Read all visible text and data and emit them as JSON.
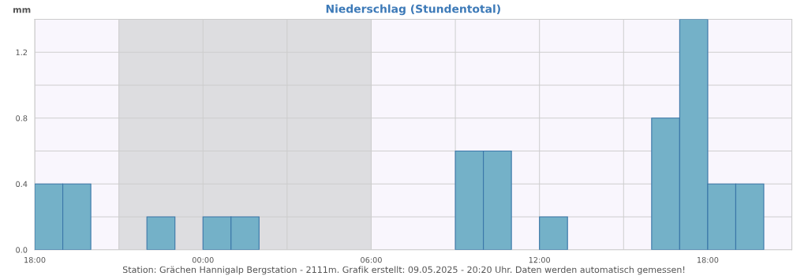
{
  "chart_data": {
    "type": "histogram",
    "title": "Niederschlag (Stundentotal)",
    "ylabel": "mm",
    "bins": [
      "2025-05-08T18:00",
      "2025-05-08T19:00",
      "2025-05-08T20:00",
      "2025-05-08T21:00",
      "2025-05-08T22:00",
      "2025-05-08T23:00",
      "2025-05-09T00:00",
      "2025-05-09T01:00",
      "2025-05-09T02:00",
      "2025-05-09T03:00",
      "2025-05-09T04:00",
      "2025-05-09T05:00",
      "2025-05-09T06:00",
      "2025-05-09T07:00",
      "2025-05-09T08:00",
      "2025-05-09T09:00",
      "2025-05-09T10:00",
      "2025-05-09T11:00",
      "2025-05-09T12:00",
      "2025-05-09T13:00",
      "2025-05-09T14:00",
      "2025-05-09T15:00",
      "2025-05-09T16:00",
      "2025-05-09T17:00",
      "2025-05-09T18:00",
      "2025-05-09T19:00",
      "2025-05-09T20:00"
    ],
    "values": [
      0.4,
      0.4,
      0,
      0,
      0.2,
      0,
      0.2,
      0.2,
      0,
      0,
      0,
      0,
      0,
      0,
      0,
      0.6,
      0.6,
      0,
      0.2,
      0,
      0,
      0,
      0.8,
      1.4,
      0.4,
      0.4
    ],
    "color": "#74b1c8",
    "xlim": [
      "2025-05-08T18:00",
      "2025-05-09T21:00"
    ],
    "ylim": [
      0,
      1.4
    ],
    "xticks": [
      {
        "value": "2025-05-08T18:00",
        "label": "18:00"
      },
      {
        "value": "2025-05-08T21:00",
        "label": null
      },
      {
        "value": "2025-05-09T00:00",
        "label": "00:00"
      },
      {
        "value": "2025-05-09T03:00",
        "label": null
      },
      {
        "value": "2025-05-09T06:00",
        "label": "06:00"
      },
      {
        "value": "2025-05-09T09:00",
        "label": null
      },
      {
        "value": "2025-05-09T12:00",
        "label": "12:00"
      },
      {
        "value": "2025-05-09T15:00",
        "label": null
      },
      {
        "value": "2025-05-09T18:00",
        "label": "18:00"
      }
    ],
    "yticks": [
      {
        "value": 0,
        "label": "0.0"
      },
      {
        "value": 0.2,
        "label": null
      },
      {
        "value": 0.4,
        "label": "0.4"
      },
      {
        "value": 0.6,
        "label": null
      },
      {
        "value": 0.8,
        "label": "0.8"
      },
      {
        "value": 1.0,
        "label": null
      },
      {
        "value": 1.2,
        "label": "1.2"
      }
    ],
    "bands": [
      {
        "axis": "x",
        "from": "2025-05-08T21:00",
        "to": "2025-05-09T06:00",
        "label": null,
        "color": "#dddde0"
      }
    ],
    "grid": true,
    "annotations": [
      "Station: Grächen Hannigalp Bergstation - 2111m. Grafik erstellt: 09.05.2025 - 20:20 Uhr. Daten werden automatisch gemessen!"
    ]
  }
}
